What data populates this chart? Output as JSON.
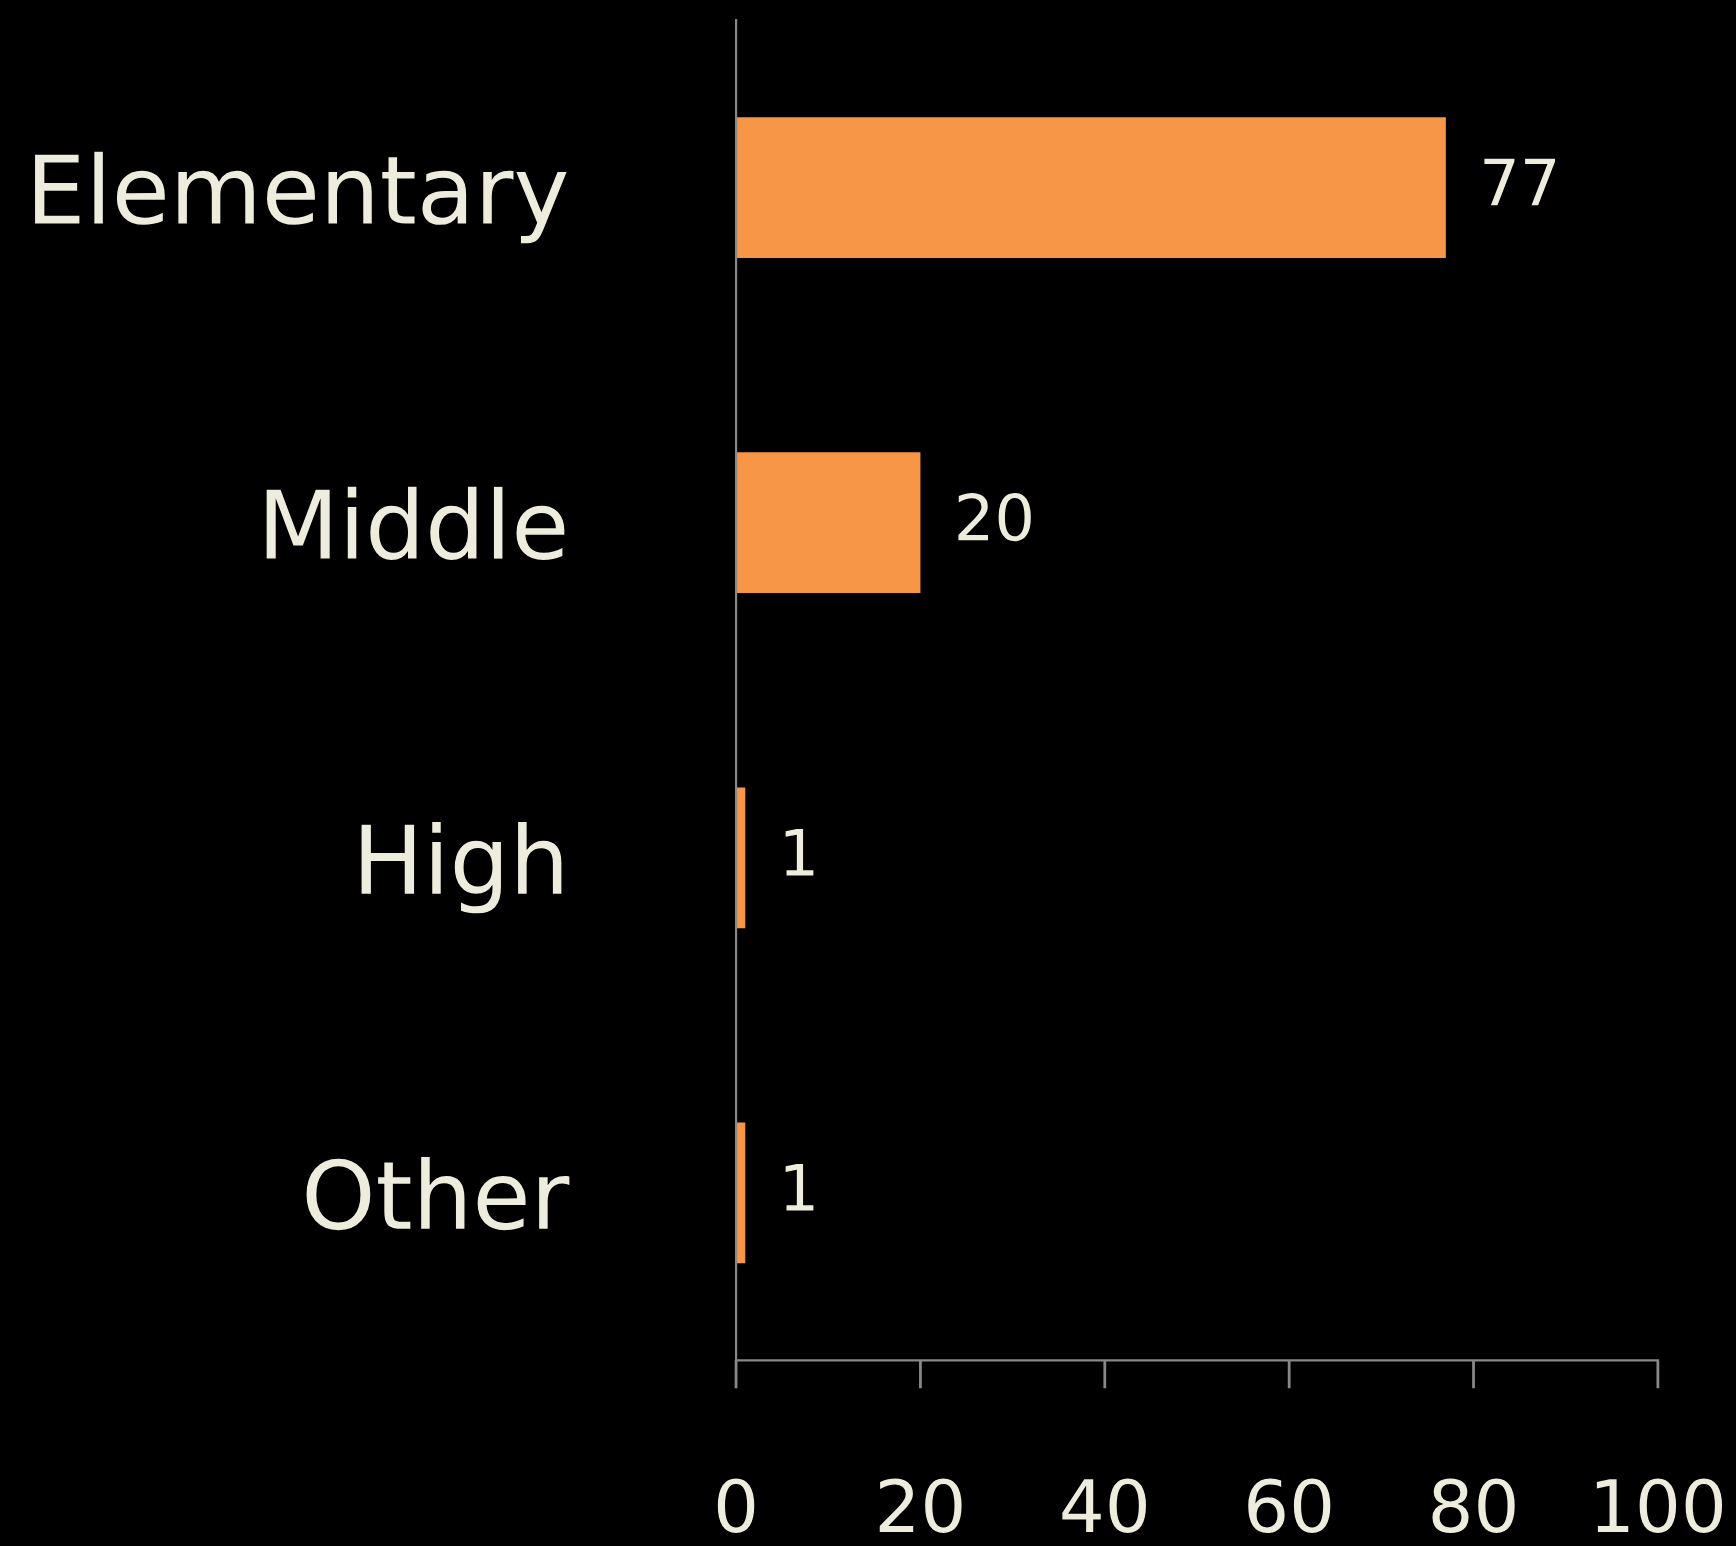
{
  "chart_data": {
    "type": "bar",
    "orientation": "horizontal",
    "categories": [
      "Elementary",
      "Middle",
      "High",
      "Other"
    ],
    "values": [
      77,
      20,
      1,
      1
    ],
    "color": "#f79646",
    "xlim": [
      0,
      100
    ],
    "xticks": [
      0,
      20,
      40,
      60,
      80,
      100
    ],
    "data_labels": true,
    "grid": false,
    "legend": false
  }
}
